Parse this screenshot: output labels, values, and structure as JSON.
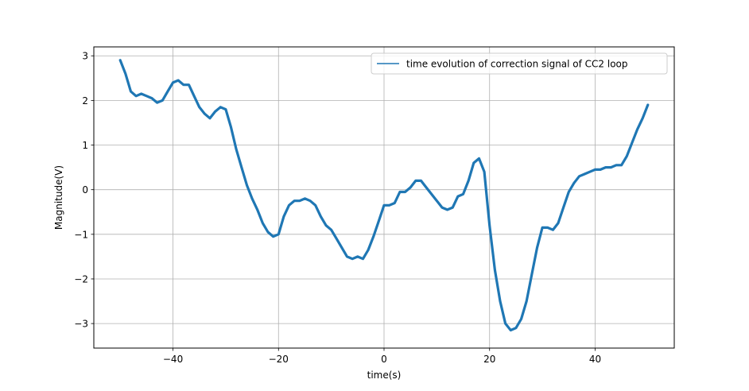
{
  "chart_data": {
    "type": "line",
    "title": "",
    "xlabel": "time(s)",
    "ylabel": "Magnitude(V)",
    "xlim": [
      -55,
      55
    ],
    "ylim": [
      -3.55,
      3.2
    ],
    "x_ticks": [
      -40,
      -20,
      0,
      20,
      40
    ],
    "y_ticks": [
      3,
      2,
      1,
      0,
      -1,
      -2,
      -3
    ],
    "x_tick_labels": [
      "−40",
      "−20",
      "0",
      "20",
      "40"
    ],
    "y_tick_labels": [
      "3",
      "2",
      "1",
      "0",
      "−1",
      "−2",
      "−3"
    ],
    "grid": true,
    "legend_position": "upper right",
    "series": [
      {
        "name": "time evolution of correction signal of CC2 loop",
        "color": "#1f77b4",
        "x": [
          -50,
          -49,
          -48,
          -47,
          -46,
          -45,
          -44,
          -43,
          -42,
          -41,
          -40,
          -39,
          -38,
          -37,
          -36,
          -35,
          -34,
          -33,
          -32,
          -31,
          -30,
          -29,
          -28,
          -27,
          -26,
          -25,
          -24,
          -23,
          -22,
          -21,
          -20,
          -19,
          -18,
          -17,
          -16,
          -15,
          -14,
          -13,
          -12,
          -11,
          -10,
          -9,
          -8,
          -7,
          -6,
          -5,
          -4,
          -3,
          -2,
          -1,
          0,
          1,
          2,
          3,
          4,
          5,
          6,
          7,
          8,
          9,
          10,
          11,
          12,
          13,
          14,
          15,
          16,
          17,
          18,
          19,
          20,
          21,
          22,
          23,
          24,
          25,
          26,
          27,
          28,
          29,
          30,
          31,
          32,
          33,
          34,
          35,
          36,
          37,
          38,
          39,
          40,
          41,
          42,
          43,
          44,
          45,
          46,
          47,
          48,
          49,
          50
        ],
        "y": [
          2.9,
          2.6,
          2.2,
          2.1,
          2.15,
          2.1,
          2.05,
          1.95,
          2.0,
          2.2,
          2.4,
          2.45,
          2.35,
          2.35,
          2.1,
          1.85,
          1.7,
          1.6,
          1.75,
          1.85,
          1.8,
          1.4,
          0.9,
          0.5,
          0.1,
          -0.2,
          -0.45,
          -0.75,
          -0.95,
          -1.05,
          -1.0,
          -0.6,
          -0.35,
          -0.25,
          -0.25,
          -0.2,
          -0.25,
          -0.35,
          -0.6,
          -0.8,
          -0.9,
          -1.1,
          -1.3,
          -1.5,
          -1.55,
          -1.5,
          -1.55,
          -1.35,
          -1.05,
          -0.7,
          -0.35,
          -0.35,
          -0.3,
          -0.05,
          -0.05,
          0.05,
          0.2,
          0.2,
          0.05,
          -0.1,
          -0.25,
          -0.4,
          -0.45,
          -0.4,
          -0.15,
          -0.1,
          0.2,
          0.6,
          0.7,
          0.4,
          -0.8,
          -1.8,
          -2.5,
          -3.0,
          -3.15,
          -3.1,
          -2.9,
          -2.5,
          -1.9,
          -1.3,
          -0.85,
          -0.85,
          -0.9,
          -0.75,
          -0.4,
          -0.05,
          0.15,
          0.3,
          0.35,
          0.4,
          0.45,
          0.45,
          0.5,
          0.5,
          0.55,
          0.55,
          0.75,
          1.05,
          1.35,
          1.6,
          1.9
        ]
      }
    ]
  }
}
